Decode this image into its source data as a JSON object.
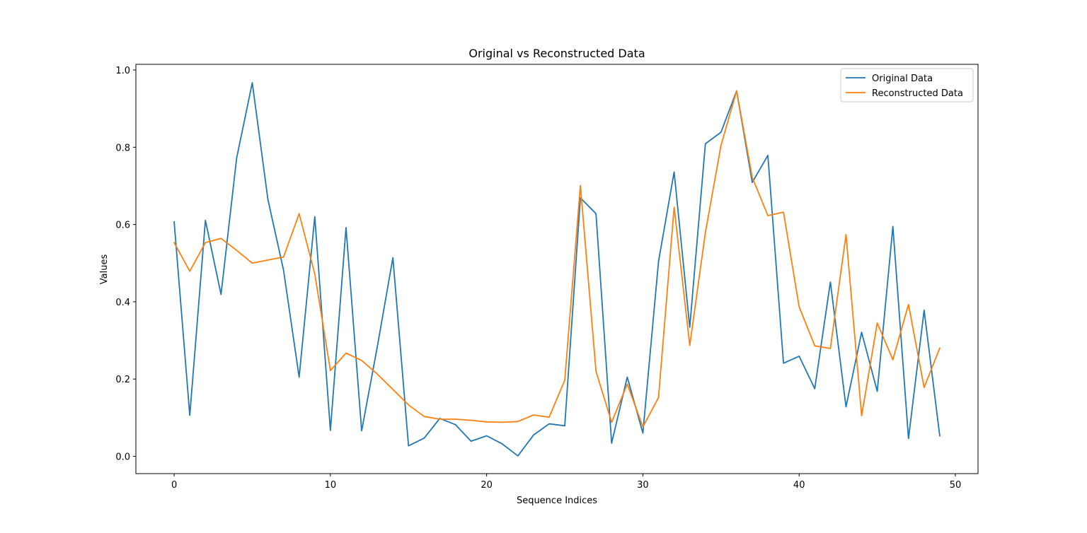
{
  "chart_data": {
    "type": "line",
    "title": "Original vs Reconstructed Data",
    "xlabel": "Sequence Indices",
    "ylabel": "Values",
    "xlim": [
      -2.45,
      51.45
    ],
    "ylim": [
      -0.0449,
      1.0147
    ],
    "xticks": [
      0,
      10,
      20,
      30,
      40,
      50
    ],
    "yticks": [
      0.0,
      0.2,
      0.4,
      0.6,
      0.8,
      1.0
    ],
    "grid": false,
    "legend_position": "top-right",
    "x": [
      0,
      1,
      2,
      3,
      4,
      5,
      6,
      7,
      8,
      9,
      10,
      11,
      12,
      13,
      14,
      15,
      16,
      17,
      18,
      19,
      20,
      21,
      22,
      23,
      24,
      25,
      26,
      27,
      28,
      29,
      30,
      31,
      32,
      33,
      34,
      35,
      36,
      37,
      38,
      39,
      40,
      41,
      42,
      43,
      44,
      45,
      46,
      47,
      48,
      49
    ],
    "series": [
      {
        "name": "Original Data",
        "color": "#1f77b4",
        "values": [
          0.607,
          0.106,
          0.611,
          0.419,
          0.772,
          0.967,
          0.665,
          0.482,
          0.205,
          0.62,
          0.067,
          0.592,
          0.066,
          0.283,
          0.514,
          0.027,
          0.047,
          0.098,
          0.082,
          0.039,
          0.053,
          0.032,
          0.001,
          0.055,
          0.084,
          0.079,
          0.669,
          0.628,
          0.034,
          0.205,
          0.06,
          0.504,
          0.736,
          0.334,
          0.809,
          0.839,
          0.946,
          0.709,
          0.779,
          0.241,
          0.259,
          0.175,
          0.451,
          0.128,
          0.321,
          0.168,
          0.595,
          0.046,
          0.378,
          0.053
        ]
      },
      {
        "name": "Reconstructed Data",
        "color": "#ff7f0e",
        "values": [
          0.553,
          0.479,
          0.553,
          0.564,
          0.533,
          0.5,
          0.508,
          0.516,
          0.628,
          0.472,
          0.222,
          0.267,
          0.248,
          0.213,
          0.173,
          0.133,
          0.103,
          0.096,
          0.096,
          0.093,
          0.089,
          0.088,
          0.09,
          0.107,
          0.101,
          0.197,
          0.701,
          0.22,
          0.088,
          0.187,
          0.076,
          0.152,
          0.645,
          0.287,
          0.579,
          0.805,
          0.946,
          0.722,
          0.623,
          0.632,
          0.387,
          0.286,
          0.279,
          0.574,
          0.105,
          0.345,
          0.25,
          0.393,
          0.178,
          0.28
        ]
      }
    ]
  }
}
